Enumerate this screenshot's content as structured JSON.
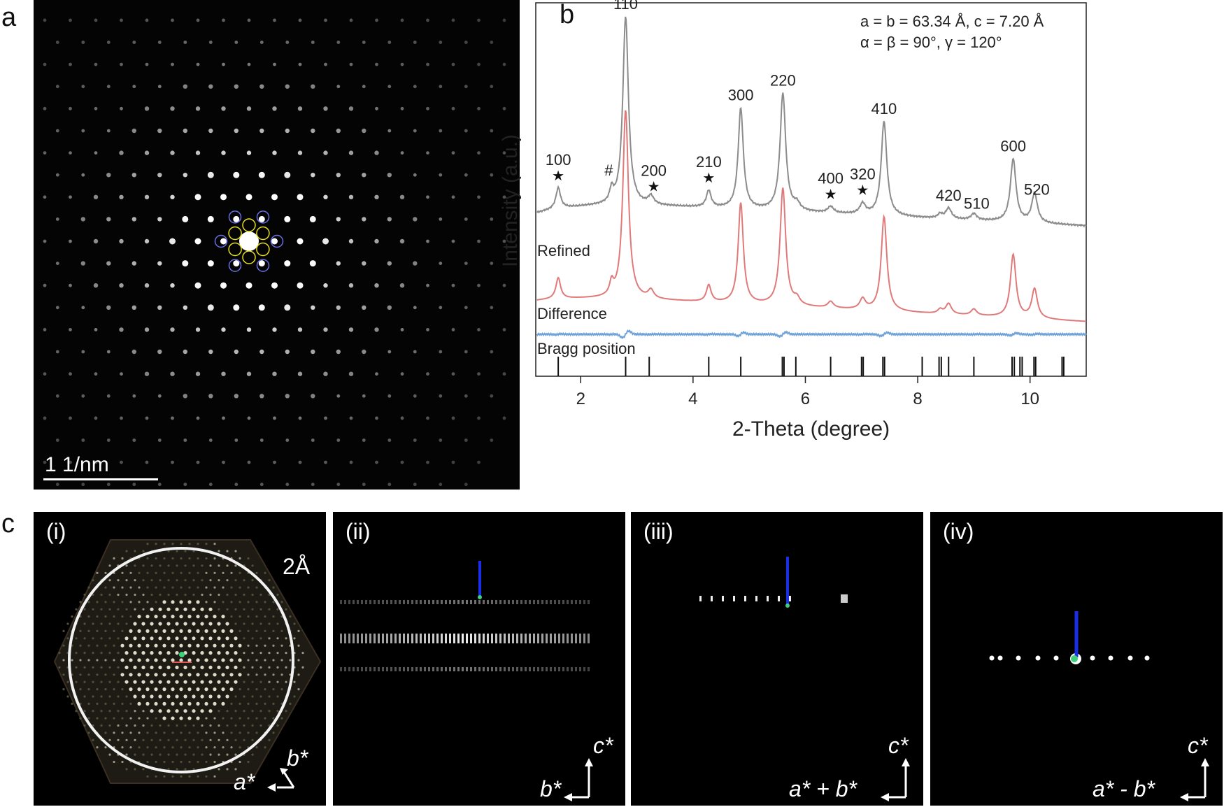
{
  "panel_labels": {
    "a": "a",
    "b": "b",
    "c": "c"
  },
  "panel_a": {
    "scalebar": "1 1/nm"
  },
  "panel_c": {
    "sub": [
      {
        "label": "(i)",
        "annotation": "2Å",
        "axis_up": "b*",
        "axis_right": "a*"
      },
      {
        "label": "(ii)",
        "axis_up": "c*",
        "axis_right": "b*"
      },
      {
        "label": "(iii)",
        "axis_up": "c*",
        "axis_right": "a* + b*"
      },
      {
        "label": "(iv)",
        "axis_up": "c*",
        "axis_right": "a* - b*"
      }
    ]
  },
  "chart_data": {
    "type": "line",
    "xlabel": "2-Theta (degree)",
    "ylabel": "Intensity (a.u.)",
    "xlim": [
      1.2,
      11.0
    ],
    "xticks": [
      2,
      4,
      6,
      8,
      10
    ],
    "cell_params": [
      "a = b = 63.34 Å, c = 7.20 Å",
      "α = β = 90°, γ = 120°"
    ],
    "series_labels": {
      "refined": "Refined",
      "difference": "Difference",
      "bragg": "Bragg position"
    },
    "colors": {
      "observed": "#8c8c8c",
      "refined": "#e07a7a",
      "difference": "#6fa3d8",
      "bragg": "#111111"
    },
    "peaks": [
      {
        "x": 1.6,
        "h": 0.1,
        "w": 0.05
      },
      {
        "x": 2.55,
        "h": 0.06,
        "w": 0.04
      },
      {
        "x": 2.8,
        "h": 0.9,
        "w": 0.06
      },
      {
        "x": 3.25,
        "h": 0.04,
        "w": 0.06
      },
      {
        "x": 4.28,
        "h": 0.08,
        "w": 0.05
      },
      {
        "x": 4.85,
        "h": 0.48,
        "w": 0.055
      },
      {
        "x": 5.6,
        "h": 0.56,
        "w": 0.06
      },
      {
        "x": 5.85,
        "h": 0.03,
        "w": 0.06
      },
      {
        "x": 6.45,
        "h": 0.03,
        "w": 0.06
      },
      {
        "x": 7.02,
        "h": 0.05,
        "w": 0.06
      },
      {
        "x": 7.4,
        "h": 0.45,
        "w": 0.06
      },
      {
        "x": 8.4,
        "h": 0.02,
        "w": 0.05
      },
      {
        "x": 8.55,
        "h": 0.05,
        "w": 0.06
      },
      {
        "x": 9.0,
        "h": 0.03,
        "w": 0.06
      },
      {
        "x": 9.7,
        "h": 0.3,
        "w": 0.06
      },
      {
        "x": 10.08,
        "h": 0.14,
        "w": 0.06
      }
    ],
    "peak_labels": [
      {
        "text": "100",
        "x": 1.6,
        "star": true
      },
      {
        "text": "110",
        "x": 2.8,
        "star": false
      },
      {
        "text": "200",
        "x": 3.3,
        "star": true
      },
      {
        "text": "210",
        "x": 4.28,
        "star": true
      },
      {
        "text": "300",
        "x": 4.85,
        "star": false
      },
      {
        "text": "220",
        "x": 5.6,
        "star": false
      },
      {
        "text": "400",
        "x": 6.45,
        "star": true
      },
      {
        "text": "320",
        "x": 7.02,
        "star": true
      },
      {
        "text": "410",
        "x": 7.4,
        "star": false
      },
      {
        "text": "420",
        "x": 8.55,
        "star": false
      },
      {
        "text": "510",
        "x": 9.05,
        "star": false
      },
      {
        "text": "600",
        "x": 9.7,
        "star": false
      },
      {
        "text": "520",
        "x": 10.12,
        "star": false
      }
    ],
    "hash_label": {
      "text": "#",
      "x": 2.55
    },
    "bragg_positions": [
      1.6,
      2.8,
      3.22,
      4.28,
      4.85,
      5.59,
      5.62,
      5.83,
      6.45,
      7.0,
      7.03,
      7.38,
      7.41,
      8.08,
      8.38,
      8.42,
      8.55,
      9.0,
      9.68,
      9.72,
      9.82,
      9.86,
      10.07,
      10.1,
      10.57,
      10.6
    ]
  }
}
